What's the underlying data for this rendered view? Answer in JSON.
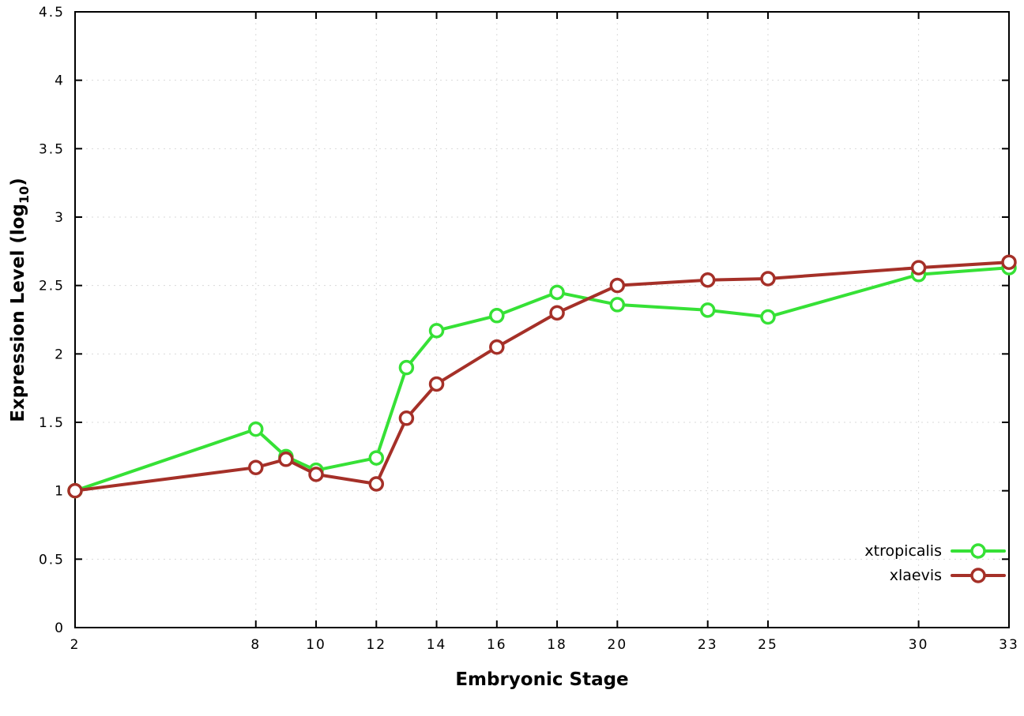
{
  "page": {
    "background": "#ffffff"
  },
  "chart_data": {
    "type": "line",
    "title": "",
    "xlabel": "Embryonic Stage",
    "ylabel": "Expression Level (log10)",
    "ylabel_parts": {
      "main": "Expression Level (log",
      "sub": "10",
      "end": ")"
    },
    "xlim": [
      2,
      33
    ],
    "ylim": [
      0,
      4.5
    ],
    "x_ticks": [
      2,
      8,
      10,
      12,
      14,
      16,
      18,
      20,
      23,
      25,
      30,
      33
    ],
    "y_ticks": [
      0,
      0.5,
      1,
      1.5,
      2,
      2.5,
      3,
      3.5,
      4,
      4.5
    ],
    "grid": true,
    "grid_color": "#d9d9d9",
    "border_color": "#000000",
    "legend_position": "bottom-right",
    "marker": "open-circle",
    "series": [
      {
        "name": "xtropicalis",
        "color": "#36e136",
        "x": [
          2,
          8,
          9,
          10,
          12,
          13,
          14,
          16,
          18,
          20,
          23,
          25,
          30,
          33
        ],
        "y": [
          1.0,
          1.45,
          1.25,
          1.15,
          1.24,
          1.9,
          2.17,
          2.28,
          2.45,
          2.36,
          2.32,
          2.27,
          2.58,
          2.63
        ]
      },
      {
        "name": "xlaevis",
        "color": "#a53028",
        "x": [
          2,
          8,
          9,
          10,
          12,
          13,
          14,
          16,
          18,
          20,
          23,
          25,
          30,
          33
        ],
        "y": [
          1.0,
          1.17,
          1.23,
          1.12,
          1.05,
          1.53,
          1.78,
          2.05,
          2.3,
          2.5,
          2.54,
          2.55,
          2.63,
          2.67
        ]
      }
    ]
  }
}
